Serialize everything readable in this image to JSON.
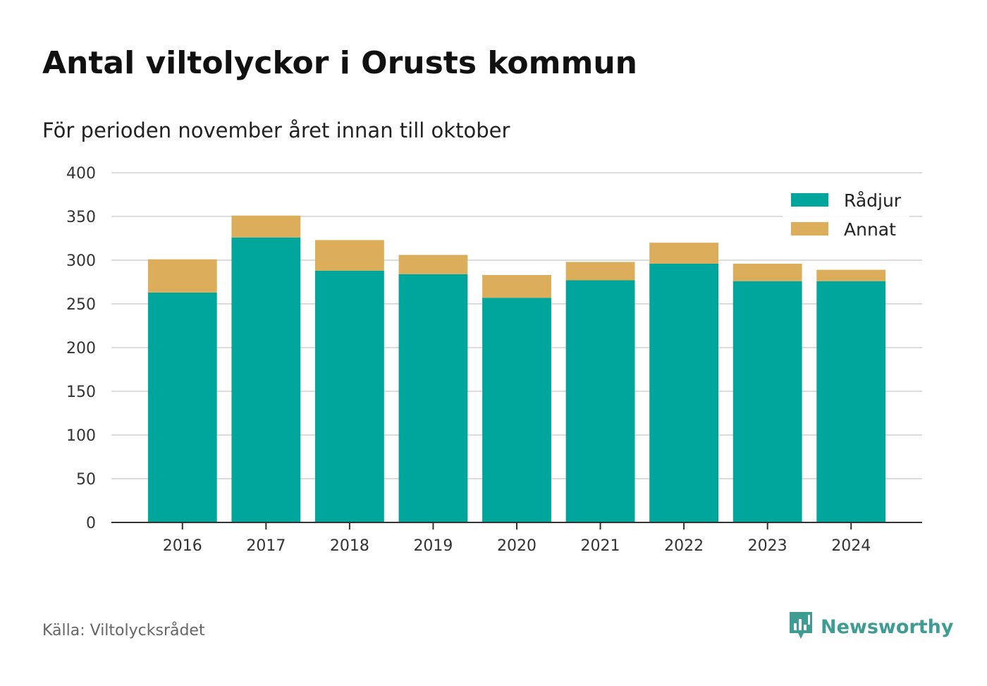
{
  "chart_data": {
    "type": "bar",
    "stacked": true,
    "title": "Antal viltolyckor i Orusts kommun",
    "subtitle": "För perioden november året innan till oktober",
    "categories": [
      "2016",
      "2017",
      "2018",
      "2019",
      "2020",
      "2021",
      "2022",
      "2023",
      "2024"
    ],
    "series": [
      {
        "name": "Rådjur",
        "color": "#00a59b",
        "values": [
          263,
          326,
          288,
          284,
          257,
          277,
          296,
          276,
          276
        ]
      },
      {
        "name": "Annat",
        "color": "#dcae5c",
        "values": [
          38,
          25,
          35,
          22,
          26,
          21,
          24,
          20,
          13
        ]
      }
    ],
    "ylim": [
      0,
      400
    ],
    "yticks": [
      0,
      50,
      100,
      150,
      200,
      250,
      300,
      350,
      400
    ],
    "grid": true,
    "legend_position": "top-right",
    "xlabel": "",
    "ylabel": ""
  },
  "source": "Källa: Viltolycksrådet",
  "brand": {
    "name": "Newsworthy",
    "icon": "newsworthy-logo-icon",
    "color": "#3e9c93"
  }
}
